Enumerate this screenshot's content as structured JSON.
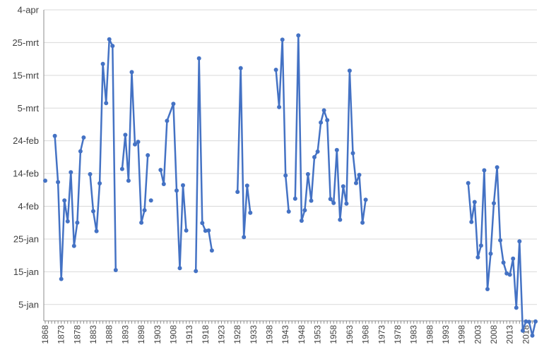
{
  "chart_data": {
    "type": "line",
    "title": "",
    "xlabel": "",
    "ylabel": "",
    "grid": "horizontal",
    "legend": "none",
    "x_range": [
      1868,
      2021
    ],
    "y_range_days": [
      -5,
      90
    ],
    "y_ticks": [
      {
        "label": "4-apr",
        "day": 90
      },
      {
        "label": "25-mrt",
        "day": 80
      },
      {
        "label": "15-mrt",
        "day": 70
      },
      {
        "label": "5-mrt",
        "day": 60
      },
      {
        "label": "24-feb",
        "day": 50
      },
      {
        "label": "14-feb",
        "day": 40
      },
      {
        "label": "4-feb",
        "day": 30
      },
      {
        "label": "25-jan",
        "day": 20
      },
      {
        "label": "15-jan",
        "day": 10
      },
      {
        "label": "5-jan",
        "day": 0
      }
    ],
    "x_ticks": [
      "1868",
      "1873",
      "1878",
      "1883",
      "1888",
      "1893",
      "1898",
      "1903",
      "1908",
      "1913",
      "1918",
      "1923",
      "1928",
      "1933",
      "1938",
      "1943",
      "1948",
      "1953",
      "1958",
      "1963",
      "1968",
      "1973",
      "1978",
      "1983",
      "1988",
      "1993",
      "1998",
      "2003",
      "2008",
      "2013",
      "2018"
    ],
    "series": [
      {
        "color": "#4472c4",
        "segments": [
          [
            [
              1868,
              37.8
            ]
          ],
          [
            [
              1871,
              51.5
            ],
            [
              1872,
              37.4
            ],
            [
              1873,
              7.8
            ],
            [
              1874,
              31.8
            ],
            [
              1875,
              25.4
            ],
            [
              1876,
              40.4
            ],
            [
              1877,
              17.9
            ],
            [
              1878,
              25.0
            ],
            [
              1879,
              46.8
            ],
            [
              1880,
              51.0
            ]
          ],
          [
            [
              1882,
              39.8
            ],
            [
              1883,
              28.5
            ],
            [
              1884,
              22.4
            ],
            [
              1885,
              37.0
            ],
            [
              1886,
              73.5
            ],
            [
              1887,
              61.5
            ],
            [
              1888,
              81.0
            ],
            [
              1889,
              79.0
            ],
            [
              1890,
              10.5
            ]
          ],
          [
            [
              1892,
              41.4
            ],
            [
              1893,
              51.8
            ],
            [
              1894,
              37.8
            ],
            [
              1895,
              71.0
            ],
            [
              1896,
              48.9
            ],
            [
              1897,
              49.7
            ],
            [
              1898,
              25.0
            ],
            [
              1899,
              28.8
            ],
            [
              1900,
              45.6
            ]
          ],
          [
            [
              1901,
              31.8
            ]
          ],
          [
            [
              1904,
              41.1
            ],
            [
              1905,
              36.8
            ],
            [
              1906,
              56.1
            ],
            [
              1908,
              61.3
            ],
            [
              1909,
              34.8
            ],
            [
              1910,
              11.1
            ],
            [
              1911,
              36.4
            ],
            [
              1912,
              22.6
            ]
          ],
          [
            [
              1915,
              10.2
            ],
            [
              1916,
              75.2
            ],
            [
              1917,
              24.9
            ],
            [
              1918,
              22.5
            ],
            [
              1919,
              22.6
            ],
            [
              1920,
              16.5
            ]
          ],
          [
            [
              1928,
              34.4
            ],
            [
              1929,
              72.2
            ],
            [
              1930,
              20.6
            ],
            [
              1931,
              36.3
            ],
            [
              1932,
              28.0
            ]
          ],
          [
            [
              1940,
              71.7
            ],
            [
              1941,
              60.3
            ],
            [
              1942,
              80.9
            ],
            [
              1943,
              39.4
            ],
            [
              1944,
              28.4
            ]
          ],
          [
            [
              1946,
              32.3
            ],
            [
              1947,
              82.2
            ],
            [
              1948,
              25.6
            ],
            [
              1949,
              28.8
            ],
            [
              1950,
              39.8
            ],
            [
              1951,
              31.7
            ],
            [
              1952,
              45.0
            ],
            [
              1953,
              46.7
            ],
            [
              1954,
              55.6
            ],
            [
              1955,
              59.3
            ],
            [
              1956,
              56.3
            ],
            [
              1957,
              32.2
            ],
            [
              1958,
              31.0
            ],
            [
              1959,
              47.2
            ],
            [
              1960,
              25.9
            ],
            [
              1961,
              36.1
            ],
            [
              1962,
              30.8
            ],
            [
              1963,
              71.4
            ],
            [
              1964,
              46.2
            ],
            [
              1965,
              37.1
            ],
            [
              1966,
              39.6
            ],
            [
              1967,
              25.0
            ],
            [
              1968,
              32.0
            ]
          ],
          [
            [
              2000,
              37.1
            ],
            [
              2001,
              25.2
            ],
            [
              2002,
              31.3
            ],
            [
              2003,
              14.4
            ],
            [
              2004,
              18.0
            ],
            [
              2005,
              41.0
            ],
            [
              2006,
              4.7
            ],
            [
              2007,
              15.5
            ],
            [
              2008,
              30.9
            ],
            [
              2009,
              41.9
            ],
            [
              2010,
              19.6
            ],
            [
              2011,
              12.8
            ],
            [
              2012,
              9.5
            ],
            [
              2013,
              9.1
            ],
            [
              2014,
              14.0
            ],
            [
              2015,
              -1.0
            ],
            [
              2016,
              19.3
            ],
            [
              2017,
              -8.0
            ],
            [
              2018,
              -5.2
            ],
            [
              2019,
              -5.3
            ],
            [
              2020,
              -9.5
            ],
            [
              2021,
              -5.2
            ]
          ]
        ]
      }
    ]
  }
}
